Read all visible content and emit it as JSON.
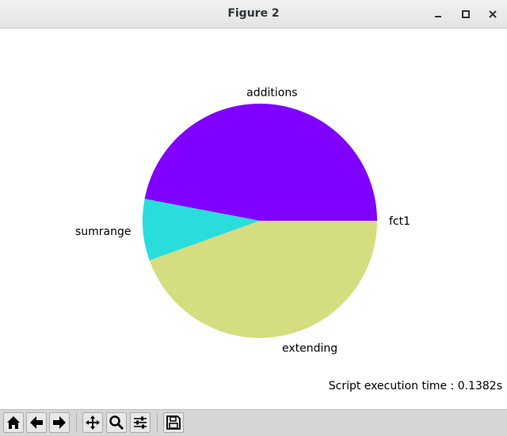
{
  "window": {
    "title": "Figure 2"
  },
  "chart_data": {
    "type": "pie",
    "categories": [
      "fct1",
      "additions",
      "sumrange",
      "extending"
    ],
    "values": [
      0.0,
      47.0,
      8.5,
      44.5
    ],
    "colors": [
      "#8000ff",
      "#8000ff",
      "#2adddd",
      "#d4dd80"
    ],
    "title": "",
    "start_angle": 0
  },
  "status": {
    "exec_time": "Script execution time : 0.1382s"
  },
  "toolbar": {
    "icons": [
      "home-icon",
      "back-icon",
      "forward-icon",
      "pan-icon",
      "zoom-icon",
      "configure-subplots-icon",
      "save-icon"
    ]
  }
}
